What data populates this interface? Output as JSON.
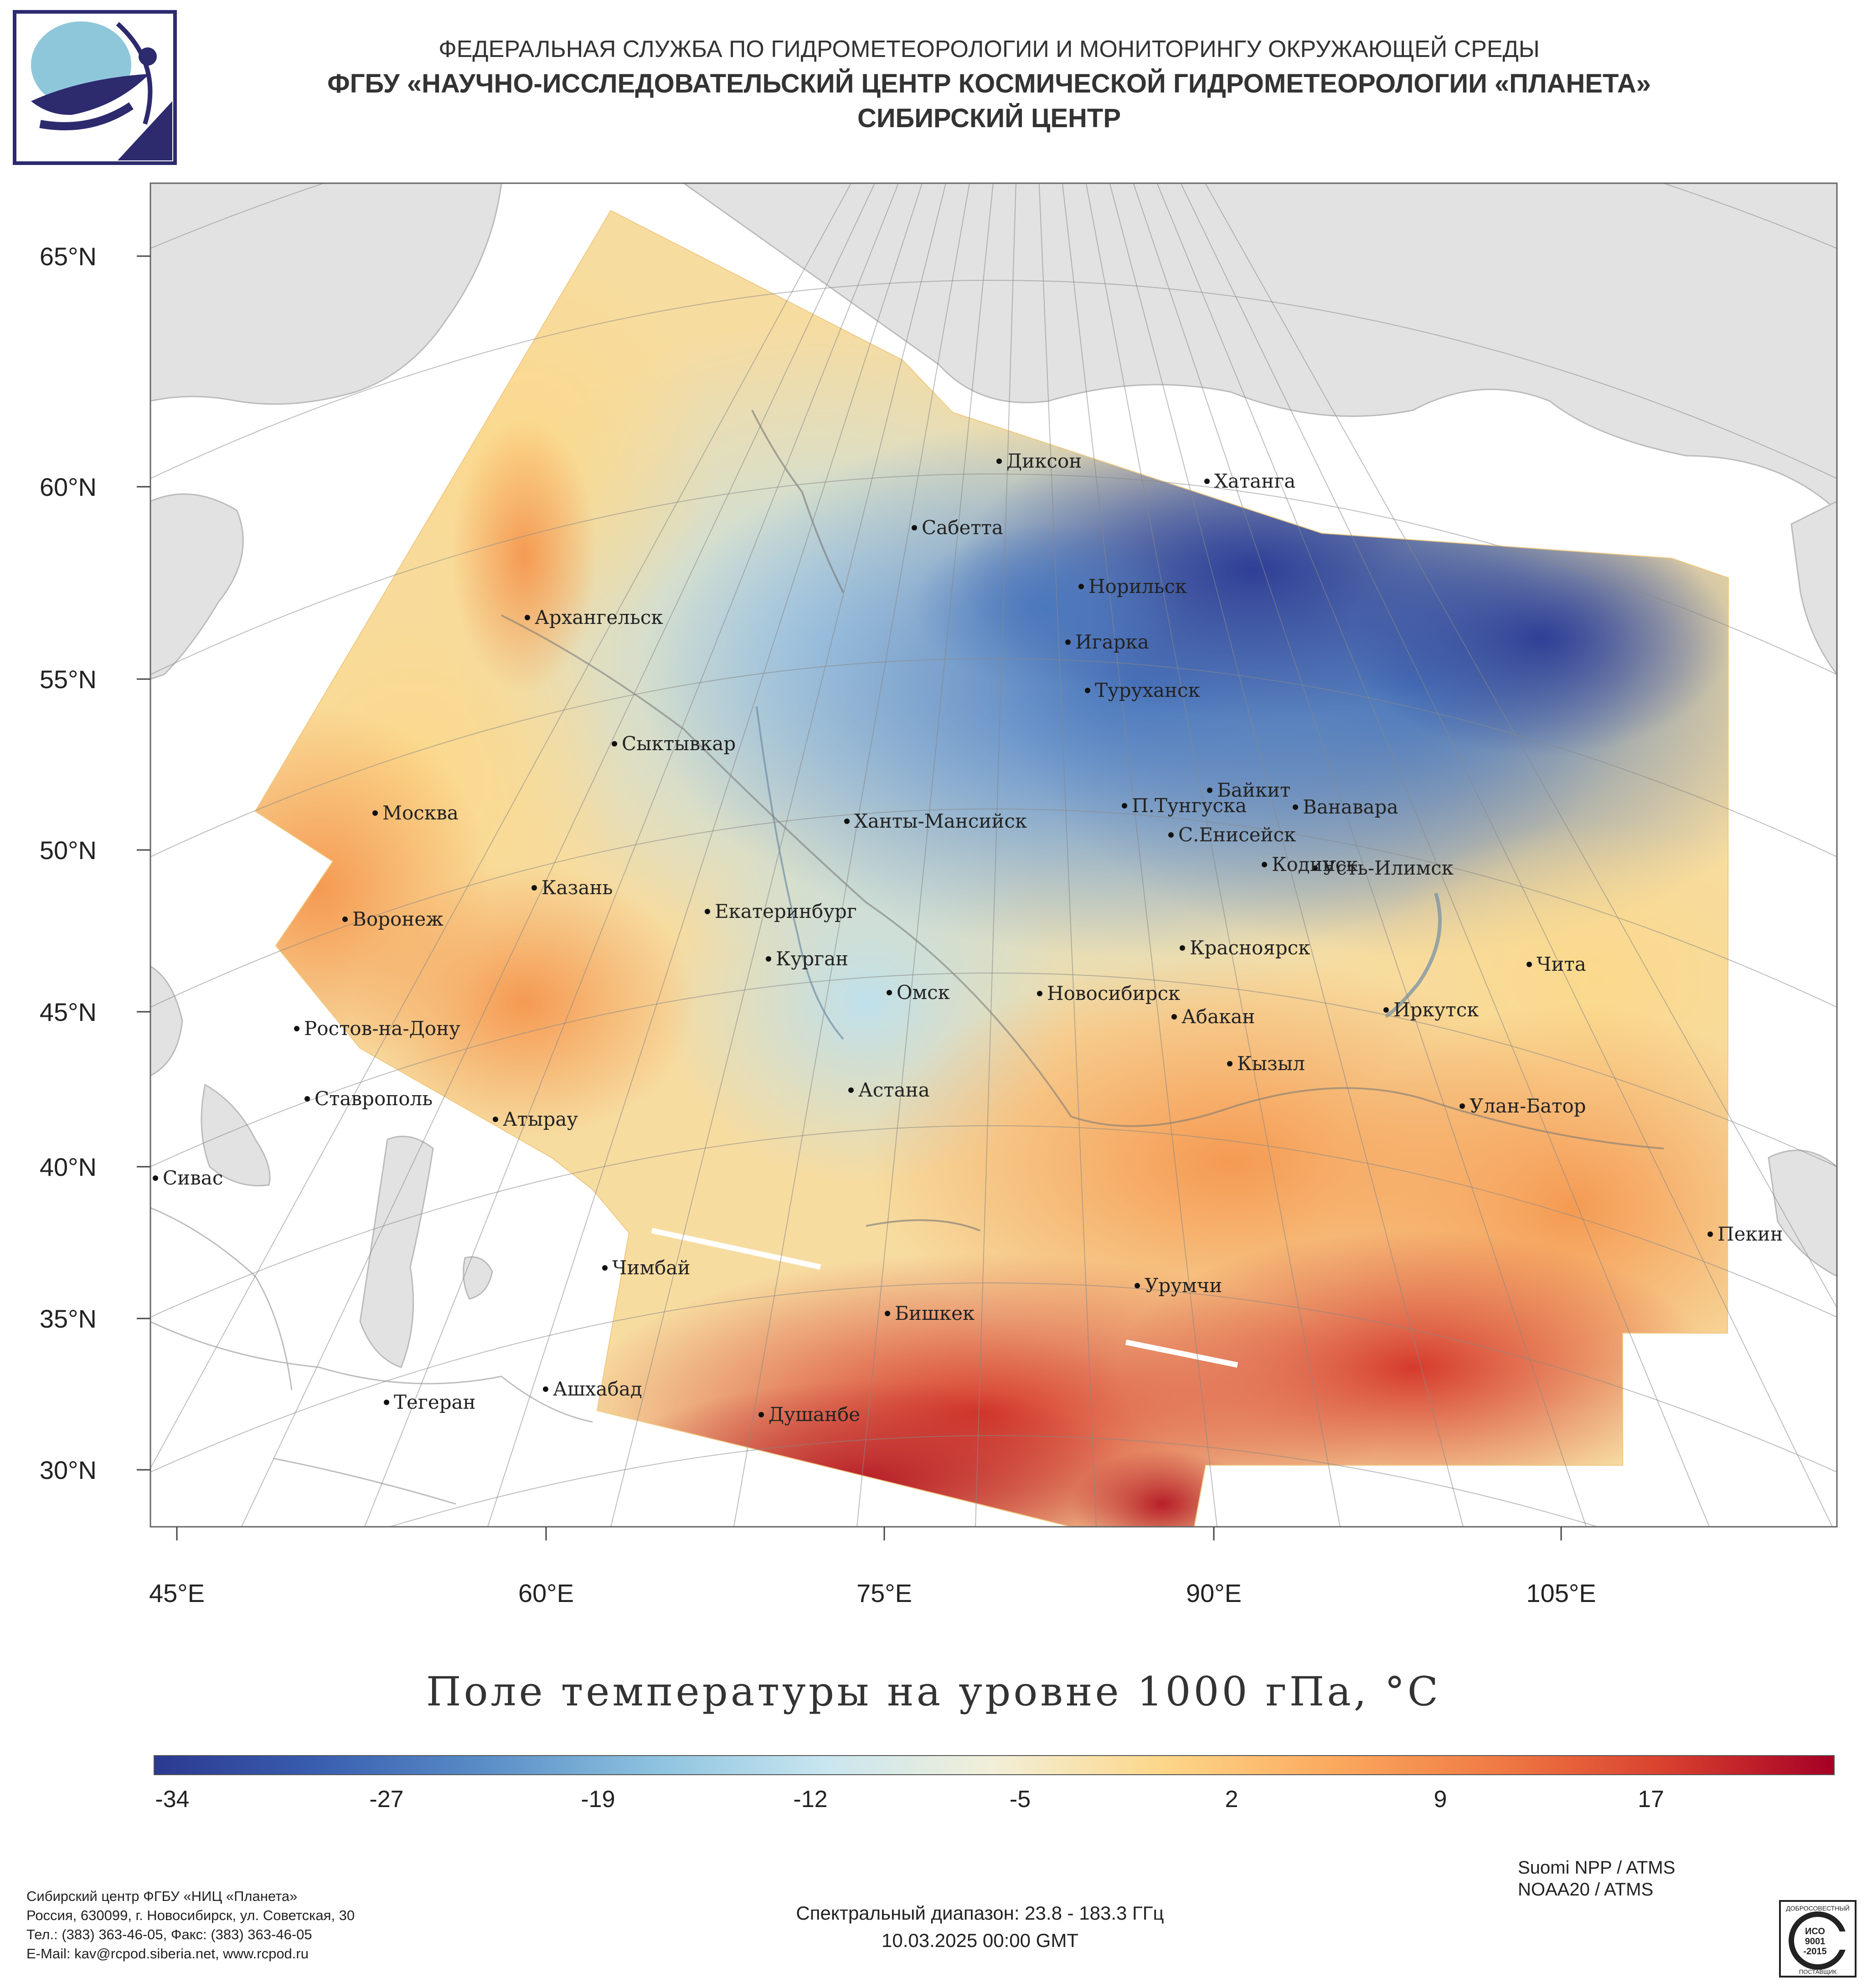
{
  "header": {
    "line1": "ФЕДЕРАЛЬНАЯ СЛУЖБА ПО ГИДРОМЕТЕОРОЛОГИИ И МОНИТОРИНГУ ОКРУЖАЮЩЕЙ СРЕДЫ",
    "line2": "ФГБУ «НАУЧНО-ИССЛЕДОВАТЕЛЬСКИЙ ЦЕНТР КОСМИЧЕСКОЙ ГИДРОМЕТЕОРОЛОГИИ «ПЛАНЕТА»",
    "line3": "СИБИРСКИЙ ЦЕНТР"
  },
  "map": {
    "lat_labels": [
      "65°N",
      "60°N",
      "55°N",
      "50°N",
      "45°N",
      "40°N",
      "35°N",
      "30°N"
    ],
    "lon_labels": [
      "45°E",
      "60°E",
      "75°E",
      "90°E",
      "105°E"
    ],
    "cities": [
      "Диксон",
      "Хатанга",
      "Сабетта",
      "Норильск",
      "Архангельск",
      "Игарка",
      "Туруханск",
      "Сыктывкар",
      "Байкит",
      "Москва",
      "П.Тунгуска",
      "Ванавара",
      "Ханты-Мансийск",
      "С.Енисейск",
      "Кодинск",
      "Усть-Илимск",
      "Казань",
      "Екатеринбург",
      "Воронеж",
      "Красноярск",
      "Курган",
      "Чита",
      "Омск",
      "Новосибирск",
      "Ростов-на-Дону",
      "Иркутск",
      "Абакан",
      "Кызыл",
      "Ставрополь",
      "Астана",
      "Улан-Батор",
      "Атырау",
      "Сивас",
      "Пекин",
      "Чимбай",
      "Урумчи",
      "Бишкек",
      "Ашхабад",
      "Тегеран",
      "Душанбе"
    ]
  },
  "title": "Поле температуры на уровне 1000 гПа, °C",
  "colorbar": {
    "ticks": [
      "-34",
      "-27",
      "-19",
      "-12",
      "-5",
      "2",
      "9",
      "17"
    ],
    "stops": [
      "#2b3990",
      "#3a5fb0",
      "#5b8fc8",
      "#8ec3df",
      "#c9e6f0",
      "#f2efd8",
      "#fdd78a",
      "#fbaa5e",
      "#f07a44",
      "#d8402e",
      "#a50026"
    ]
  },
  "footer": {
    "org": "Сибирский центр ФГБУ «НИЦ «Планета»",
    "address": "Россия, 630099, г. Новосибирск, ул. Советская, 30",
    "phone": "Тел.: (383) 363-46-05, Факс: (383) 363-46-05",
    "email": "E-Mail: kav@rcpod.siberia.net, www.rcpod.ru",
    "sat1": "Suomi NPP / ATMS",
    "sat2": "NOAA20 / ATMS",
    "spectral": "Спектральный диапазон: 23.8 - 183.3 ГГц",
    "datetime": "10.03.2025 00:00 GMT",
    "cert_top": "ДОБРОСОВЕСТНЫЙ",
    "cert_iso": "ИСО",
    "cert_num": "9001",
    "cert_year": "-2015",
    "cert_bottom": "ПОСТАВЩИК"
  }
}
